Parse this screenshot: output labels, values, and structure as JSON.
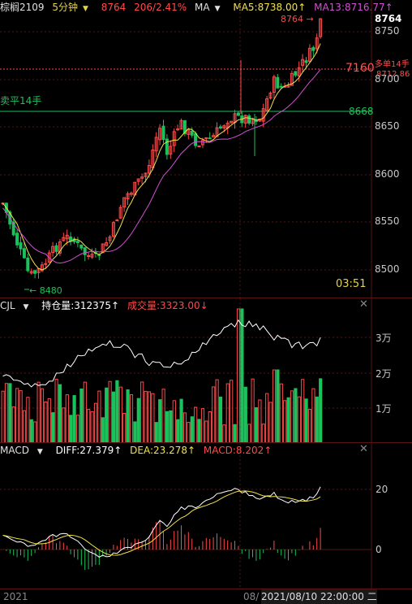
{
  "header": {
    "contract": "棕榈2109",
    "period": "5分钟",
    "price": "8764",
    "change": "206/2.41%",
    "ma_label": "MA",
    "ma5": "MA5:8738.00↑",
    "ma13": "MA13:8716.77↑"
  },
  "price_panel": {
    "y_ticks": [
      "8750",
      "8700",
      "8650",
      "8600",
      "8550",
      "8500"
    ],
    "last_price_tag": "8764",
    "high_marker": "8764",
    "low_marker": "8480",
    "order_line_value": "7160",
    "buy_label": "多单14手",
    "buy_price": "8712.86",
    "sell_label": "卖平14手",
    "sell_price": "8668",
    "clock": "03:51"
  },
  "volume_panel": {
    "name": "CJL",
    "open_interest": "持仓量:312375↑",
    "volume": "成交量:3323.00↓",
    "y_ticks": [
      "3万",
      "2万",
      "1万"
    ]
  },
  "macd_panel": {
    "name": "MACD",
    "diff": "DIFF:27.379↑",
    "dea": "DEA:23.278↑",
    "macd": "MACD:8.202↑",
    "y_ticks": [
      "20",
      "0"
    ]
  },
  "footer": {
    "year": "2021",
    "date_partial": "08/",
    "datetime": "2021/08/10 22:00:00 二"
  },
  "colors": {
    "up": "#ff4a4a",
    "down": "#19c25a",
    "ma5": "#f2e14a",
    "ma13": "#d14fd1",
    "grid": "#5a1414",
    "text": "#c8c8c8"
  },
  "icons": {
    "close": "close-icon",
    "dropdown": "caret-down-icon"
  }
}
